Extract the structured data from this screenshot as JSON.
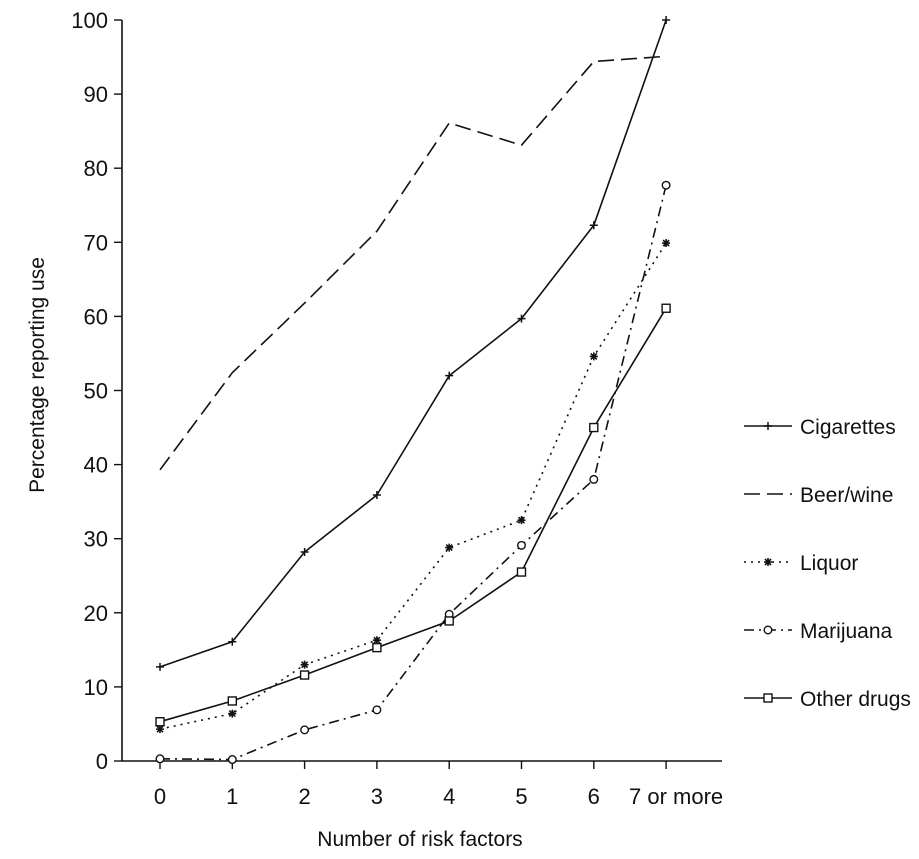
{
  "chart_data": {
    "type": "line",
    "title": "",
    "xlabel": "Number of risk factors",
    "ylabel": "Percentage reporting use",
    "categories": [
      "0",
      "1",
      "2",
      "3",
      "4",
      "5",
      "6",
      "7 or more"
    ],
    "ylim": [
      0,
      100
    ],
    "yticks": [
      "0",
      "10",
      "20",
      "30",
      "40",
      "50",
      "60",
      "70",
      "80",
      "90",
      "100"
    ],
    "grid": false,
    "legend_position": "right",
    "series": [
      {
        "name": "Cigarettes",
        "values": [
          12.7,
          16.1,
          28.2,
          35.9,
          52.0,
          59.7,
          72.3,
          100
        ],
        "dash": "solid",
        "marker": "plus"
      },
      {
        "name": "Beer/wine",
        "values": [
          39.3,
          52.4,
          61.8,
          71.5,
          86.1,
          83.1,
          94.4,
          95.1
        ],
        "dash": "longdash",
        "marker": "none"
      },
      {
        "name": "Liquor",
        "values": [
          4.3,
          6.4,
          13.0,
          16.3,
          28.8,
          32.5,
          54.6,
          69.9
        ],
        "dash": "dotted",
        "marker": "star"
      },
      {
        "name": "Marijuana",
        "values": [
          0.3,
          0.2,
          4.2,
          6.9,
          19.8,
          29.1,
          38.0,
          77.7
        ],
        "dash": "dashdot",
        "marker": "circle"
      },
      {
        "name": "Other drugs",
        "values": [
          5.3,
          8.1,
          11.6,
          15.3,
          18.9,
          25.5,
          45.0,
          61.1
        ],
        "dash": "solid",
        "marker": "square"
      }
    ]
  }
}
